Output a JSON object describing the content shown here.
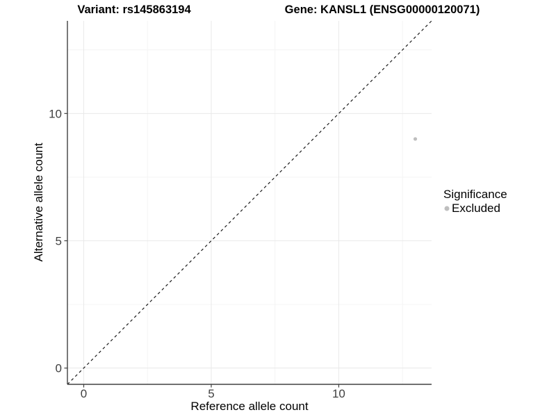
{
  "chart_data": {
    "type": "scatter",
    "title_left": "Variant: rs145863194",
    "title_right": "Gene: KANSL1 (ENSG00000120071)",
    "xlabel": "Reference allele count",
    "ylabel": "Alternative allele count",
    "xlim": [
      -0.64,
      13.64
    ],
    "ylim": [
      -0.64,
      13.64
    ],
    "x_ticks": [
      0,
      5,
      10
    ],
    "y_ticks": [
      0,
      5,
      10
    ],
    "minor_ticks": [
      2.5,
      7.5,
      12.5
    ],
    "grid": true,
    "points": [
      {
        "x": 13,
        "y": 9,
        "series": "Excluded"
      }
    ],
    "reference_line": {
      "type": "identity",
      "style": "dashed",
      "color": "#1a1a1a"
    },
    "series": [
      {
        "name": "Excluded",
        "color": "#bebebe"
      }
    ],
    "colors": {
      "background": "#ffffff",
      "grid_major": "#e9e9e9",
      "grid_minor": "#f4f4f4",
      "axis": "#404040",
      "point": "#bebebe"
    },
    "legend": {
      "title": "Significance",
      "position": "right",
      "items": [
        {
          "label": "Excluded",
          "color": "#bebebe"
        }
      ]
    }
  }
}
